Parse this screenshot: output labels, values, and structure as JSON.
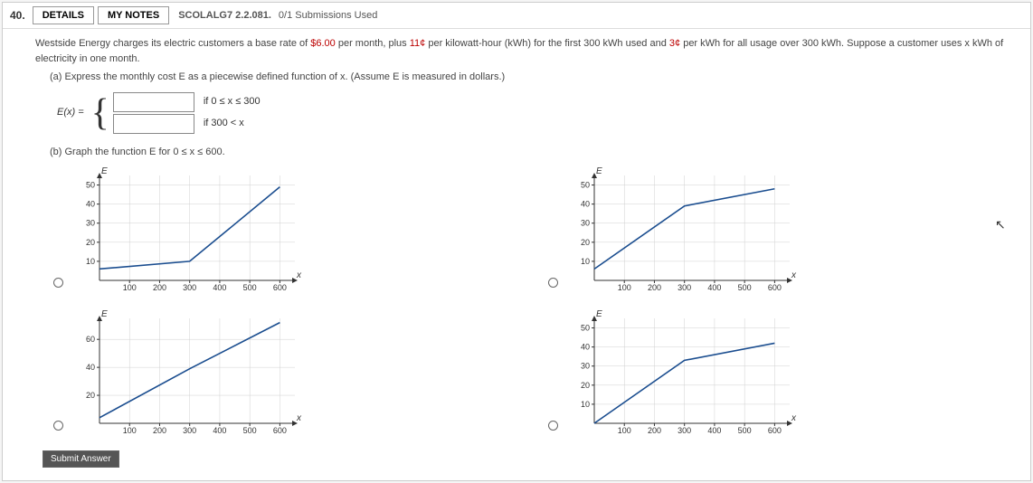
{
  "question_number": "40.",
  "buttons": {
    "details": "DETAILS",
    "notes": "MY NOTES"
  },
  "reference": "SCOLALG7 2.2.081.",
  "submissions": "0/1 Submissions Used",
  "problem": {
    "intro_a": "Westside Energy charges its electric customers a base rate of ",
    "price1": "$6.00",
    "intro_b": " per month, plus ",
    "price2": "11¢",
    "intro_c": " per kilowatt-hour (kWh) for the first 300 kWh used and ",
    "price3": "3¢",
    "intro_d": " per kWh for all usage over 300 kWh. Suppose a customer uses x kWh of electricity in one month."
  },
  "part_a": "(a) Express the monthly cost E as a piecewise defined function of x. (Assume E is measured in dollars.)",
  "piecewise": {
    "lhs": "E(x) =",
    "cond1": "if 0 ≤ x ≤ 300",
    "cond2": "if 300 < x"
  },
  "part_b": "(b) Graph the function E for 0 ≤ x ≤ 600.",
  "submit": "Submit Answer",
  "charts": {
    "axis_color": "#333",
    "grid_color": "#d0d0d0",
    "line_color": "#1a4d8f",
    "font_size": 9,
    "g1": {
      "y_lab": "E",
      "x_lab": "x",
      "x_ticks": [
        100,
        200,
        300,
        400,
        500,
        600
      ],
      "y_ticks": [
        10,
        20,
        30,
        40,
        50
      ],
      "x_max": 650,
      "y_max": 55,
      "poly": [
        [
          0,
          6
        ],
        [
          300,
          10
        ],
        [
          600,
          49
        ]
      ]
    },
    "g2": {
      "y_lab": "E",
      "x_lab": "x",
      "x_ticks": [
        100,
        200,
        300,
        400,
        500,
        600
      ],
      "y_ticks": [
        10,
        20,
        30,
        40,
        50
      ],
      "x_max": 650,
      "y_max": 55,
      "poly": [
        [
          0,
          6
        ],
        [
          300,
          39
        ],
        [
          600,
          48
        ]
      ]
    },
    "g3": {
      "y_lab": "E",
      "x_lab": "x",
      "x_ticks": [
        100,
        200,
        300,
        400,
        500,
        600
      ],
      "y_ticks": [
        20,
        40,
        60
      ],
      "x_max": 650,
      "y_max": 75,
      "poly": [
        [
          0,
          4
        ],
        [
          300,
          39
        ],
        [
          600,
          72
        ]
      ]
    },
    "g4": {
      "y_lab": "E",
      "x_lab": "x",
      "x_ticks": [
        100,
        200,
        300,
        400,
        500,
        600
      ],
      "y_ticks": [
        10,
        20,
        30,
        40,
        50
      ],
      "x_max": 650,
      "y_max": 55,
      "poly": [
        [
          0,
          0
        ],
        [
          300,
          33
        ],
        [
          600,
          42
        ]
      ]
    }
  }
}
